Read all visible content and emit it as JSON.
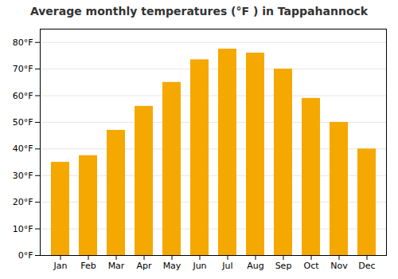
{
  "chart_data": {
    "type": "bar",
    "title": "Average monthly temperatures (°F ) in Tappahannock",
    "categories": [
      "Jan",
      "Feb",
      "Mar",
      "Apr",
      "May",
      "Jun",
      "Jul",
      "Aug",
      "Sep",
      "Oct",
      "Nov",
      "Dec"
    ],
    "values": [
      35,
      37.5,
      47,
      56,
      65,
      73.5,
      77.5,
      76,
      70,
      59,
      50,
      40
    ],
    "color": "#F5A800",
    "ylim": [
      0,
      85
    ],
    "yticks": [
      {
        "value": 0,
        "label": "0°F"
      },
      {
        "value": 10,
        "label": "10°F"
      },
      {
        "value": 20,
        "label": "20°F"
      },
      {
        "value": 30,
        "label": "30°F"
      },
      {
        "value": 40,
        "label": "40°F"
      },
      {
        "value": 50,
        "label": "50°F"
      },
      {
        "value": 60,
        "label": "60°F"
      },
      {
        "value": 70,
        "label": "70°F"
      },
      {
        "value": 80,
        "label": "80°F"
      }
    ],
    "grid": true
  }
}
